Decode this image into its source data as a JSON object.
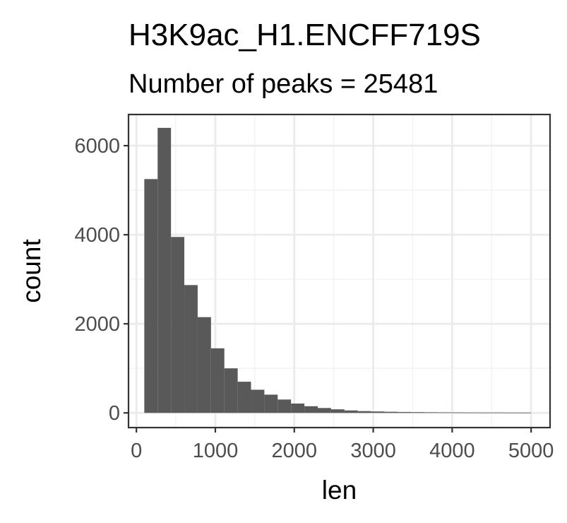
{
  "chart_data": {
    "type": "bar",
    "title": "H3K9ac_H1.ENCFF719S",
    "subtitle": "Number of peaks = 25481",
    "xlabel": "len",
    "ylabel": "count",
    "xlim": [
      -100,
      5240
    ],
    "ylim": [
      -330,
      6700
    ],
    "x_ticks": [
      0,
      1000,
      2000,
      3000,
      4000,
      5000
    ],
    "x_tick_labels": [
      "0",
      "1000",
      "2000",
      "3000",
      "4000",
      "5000"
    ],
    "y_ticks": [
      0,
      2000,
      4000,
      6000
    ],
    "y_tick_labels": [
      "0",
      "2000",
      "4000",
      "6000"
    ],
    "grid": true,
    "bar_color": "#595959",
    "bins": [
      {
        "x0": 100,
        "x1": 269,
        "count": 5250
      },
      {
        "x0": 269,
        "x1": 438,
        "count": 6400
      },
      {
        "x0": 438,
        "x1": 607,
        "count": 3950
      },
      {
        "x0": 607,
        "x1": 776,
        "count": 2870
      },
      {
        "x0": 776,
        "x1": 945,
        "count": 2150
      },
      {
        "x0": 945,
        "x1": 1114,
        "count": 1450
      },
      {
        "x0": 1114,
        "x1": 1283,
        "count": 1000
      },
      {
        "x0": 1283,
        "x1": 1452,
        "count": 700
      },
      {
        "x0": 1452,
        "x1": 1621,
        "count": 520
      },
      {
        "x0": 1621,
        "x1": 1790,
        "count": 410
      },
      {
        "x0": 1790,
        "x1": 1959,
        "count": 300
      },
      {
        "x0": 1959,
        "x1": 2128,
        "count": 210
      },
      {
        "x0": 2128,
        "x1": 2297,
        "count": 150
      },
      {
        "x0": 2297,
        "x1": 2466,
        "count": 110
      },
      {
        "x0": 2466,
        "x1": 2635,
        "count": 80
      },
      {
        "x0": 2635,
        "x1": 2804,
        "count": 55
      },
      {
        "x0": 2804,
        "x1": 2973,
        "count": 40
      },
      {
        "x0": 2973,
        "x1": 3142,
        "count": 32
      },
      {
        "x0": 3142,
        "x1": 3311,
        "count": 25
      },
      {
        "x0": 3311,
        "x1": 3480,
        "count": 20
      },
      {
        "x0": 3480,
        "x1": 3649,
        "count": 17
      },
      {
        "x0": 3649,
        "x1": 3818,
        "count": 14
      },
      {
        "x0": 3818,
        "x1": 3987,
        "count": 12
      },
      {
        "x0": 3987,
        "x1": 4156,
        "count": 10
      },
      {
        "x0": 4156,
        "x1": 4325,
        "count": 9
      },
      {
        "x0": 4325,
        "x1": 4494,
        "count": 8
      },
      {
        "x0": 4494,
        "x1": 4663,
        "count": 8
      },
      {
        "x0": 4663,
        "x1": 4832,
        "count": 7
      },
      {
        "x0": 4832,
        "x1": 5001,
        "count": 7
      }
    ]
  }
}
